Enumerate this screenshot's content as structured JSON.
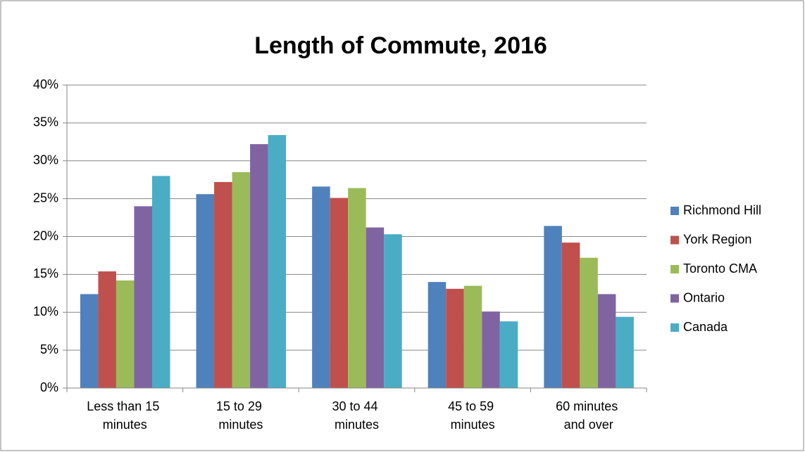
{
  "chart_data": {
    "type": "bar",
    "title": "Length of Commute, 2016",
    "categories": [
      "Less than 15 minutes",
      "15 to 29 minutes",
      "30 to 44 minutes",
      "45 to 59 minutes",
      "60 minutes and over"
    ],
    "series": [
      {
        "name": "Richmond Hill",
        "color": "#4f81bd",
        "values": [
          12.4,
          25.6,
          26.6,
          14.0,
          21.4
        ]
      },
      {
        "name": "York Region",
        "color": "#c0504d",
        "values": [
          15.4,
          27.2,
          25.1,
          13.1,
          19.2
        ]
      },
      {
        "name": "Toronto CMA",
        "color": "#9bbb59",
        "values": [
          14.2,
          28.5,
          26.4,
          13.5,
          17.2
        ]
      },
      {
        "name": "Ontario",
        "color": "#8064a2",
        "values": [
          24.0,
          32.2,
          21.2,
          10.1,
          12.4
        ]
      },
      {
        "name": "Canada",
        "color": "#4bacc6",
        "values": [
          28.0,
          33.4,
          20.3,
          8.8,
          9.4
        ]
      }
    ],
    "ylim": [
      0,
      40
    ],
    "yticks": [
      {
        "value": 0,
        "label": "0%"
      },
      {
        "value": 5,
        "label": "5%"
      },
      {
        "value": 10,
        "label": "10%"
      },
      {
        "value": 15,
        "label": "15%"
      },
      {
        "value": 20,
        "label": "20%"
      },
      {
        "value": 25,
        "label": "25%"
      },
      {
        "value": 30,
        "label": "30%"
      },
      {
        "value": 35,
        "label": "35%"
      },
      {
        "value": 40,
        "label": "40%"
      }
    ],
    "grid": true,
    "legend": "right"
  }
}
